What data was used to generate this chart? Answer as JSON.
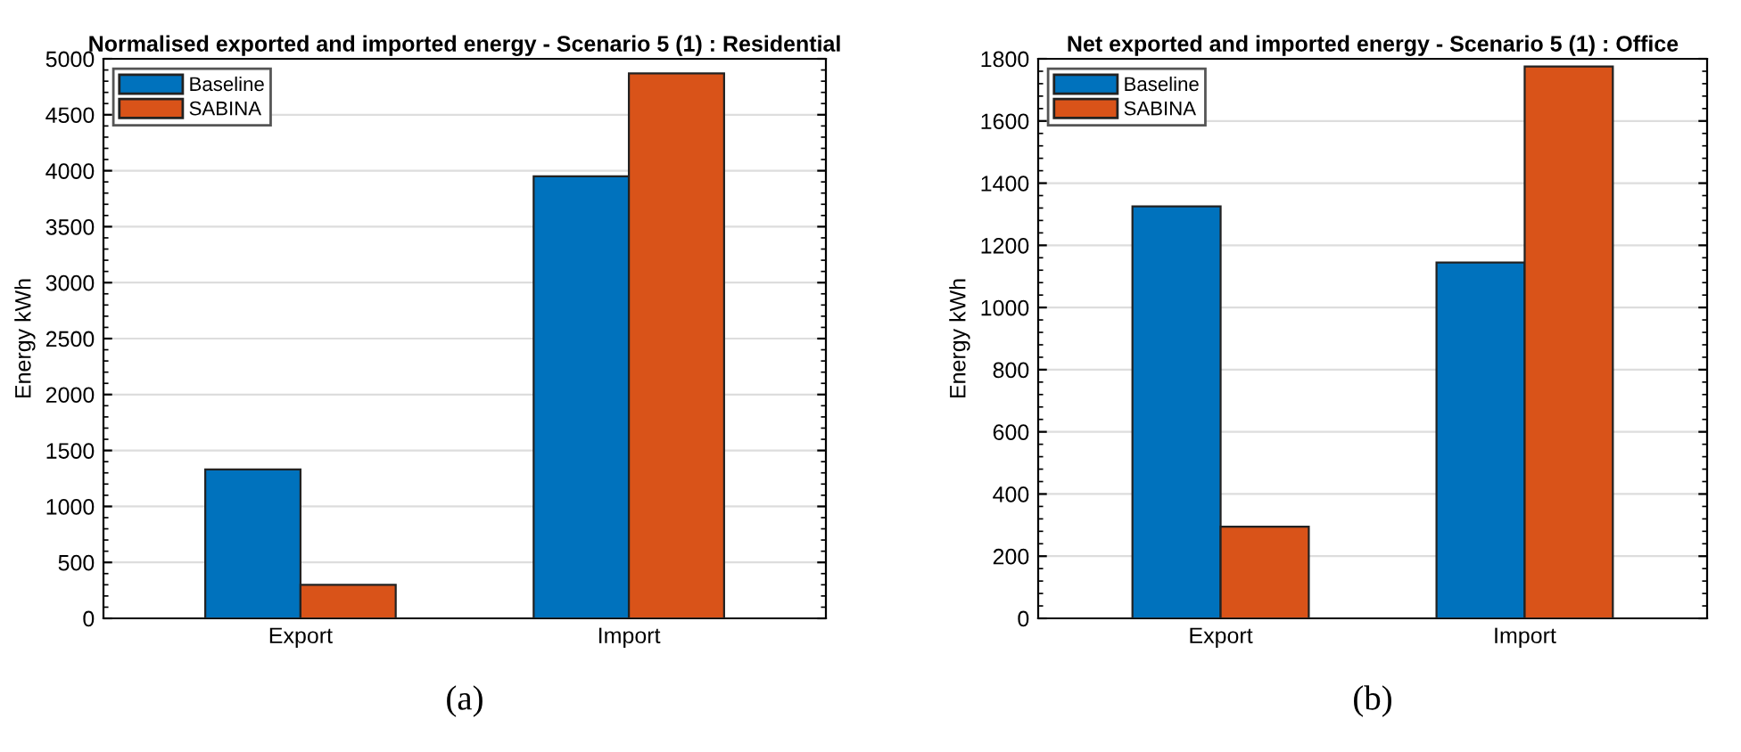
{
  "chart_data": [
    {
      "type": "bar",
      "title": "Normalised exported and imported energy - Scenario 5 (1) : Residential",
      "ylabel": "Energy kWh",
      "categories": [
        "Export",
        "Import"
      ],
      "series": [
        {
          "name": "Baseline",
          "color": "#0072bd",
          "values": [
            1330,
            3950
          ]
        },
        {
          "name": "SABINA",
          "color": "#d95319",
          "values": [
            300,
            4870
          ]
        }
      ],
      "ylim": [
        0,
        5000
      ],
      "yticks": [
        0,
        500,
        1000,
        1500,
        2000,
        2500,
        3000,
        3500,
        4000,
        4500,
        5000
      ],
      "grid": "y",
      "legend": "top left",
      "annotations": [
        "(a)"
      ]
    },
    {
      "type": "bar",
      "title": "Net exported and imported energy - Scenario 5 (1) : Office",
      "ylabel": "Energy kWh",
      "categories": [
        "Export",
        "Import"
      ],
      "series": [
        {
          "name": "Baseline",
          "color": "#0072bd",
          "values": [
            1325,
            1145
          ]
        },
        {
          "name": "SABINA",
          "color": "#d95319",
          "values": [
            295,
            1775
          ]
        }
      ],
      "ylim": [
        0,
        1800
      ],
      "yticks": [
        0,
        200,
        400,
        600,
        800,
        1000,
        1200,
        1400,
        1600,
        1800
      ],
      "grid": "y",
      "legend": "top left",
      "annotations": [
        "(b)"
      ]
    }
  ]
}
